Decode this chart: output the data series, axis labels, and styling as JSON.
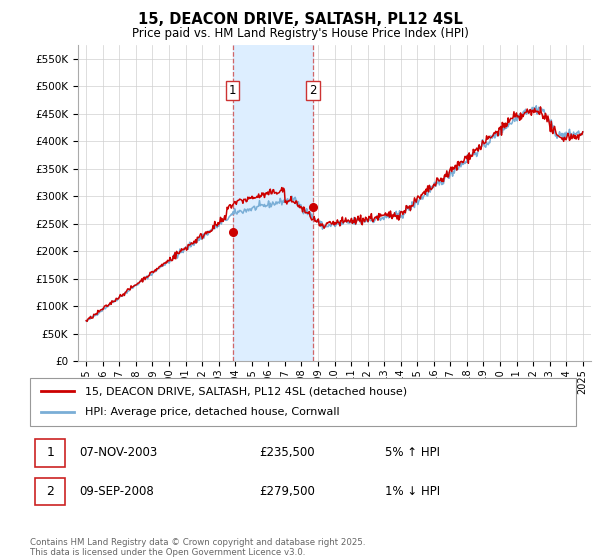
{
  "title": "15, DEACON DRIVE, SALTASH, PL12 4SL",
  "subtitle": "Price paid vs. HM Land Registry's House Price Index (HPI)",
  "legend_line1": "15, DEACON DRIVE, SALTASH, PL12 4SL (detached house)",
  "legend_line2": "HPI: Average price, detached house, Cornwall",
  "annotation1_num": "1",
  "annotation1_date": "07-NOV-2003",
  "annotation1_price": "£235,500",
  "annotation1_hpi": "5% ↑ HPI",
  "annotation2_num": "2",
  "annotation2_date": "09-SEP-2008",
  "annotation2_price": "£279,500",
  "annotation2_hpi": "1% ↓ HPI",
  "footer": "Contains HM Land Registry data © Crown copyright and database right 2025.\nThis data is licensed under the Open Government Licence v3.0.",
  "shade_x1_start": 2003.85,
  "shade_x1_end": 2008.7,
  "marker1_x": 2003.85,
  "marker1_y": 235500,
  "marker2_x": 2008.7,
  "marker2_y": 279500,
  "ylim_min": 0,
  "ylim_max": 575000,
  "xlim_min": 1994.5,
  "xlim_max": 2025.5,
  "price_line_color": "#cc0000",
  "hpi_line_color": "#7aaed6",
  "shade_color": "#ddeeff",
  "marker_color": "#cc0000",
  "yticks": [
    0,
    50000,
    100000,
    150000,
    200000,
    250000,
    300000,
    350000,
    400000,
    450000,
    500000,
    550000
  ],
  "xticks": [
    1995,
    1996,
    1997,
    1998,
    1999,
    2000,
    2001,
    2002,
    2003,
    2004,
    2005,
    2006,
    2007,
    2008,
    2009,
    2010,
    2011,
    2012,
    2013,
    2014,
    2015,
    2016,
    2017,
    2018,
    2019,
    2020,
    2021,
    2022,
    2023,
    2024,
    2025
  ]
}
